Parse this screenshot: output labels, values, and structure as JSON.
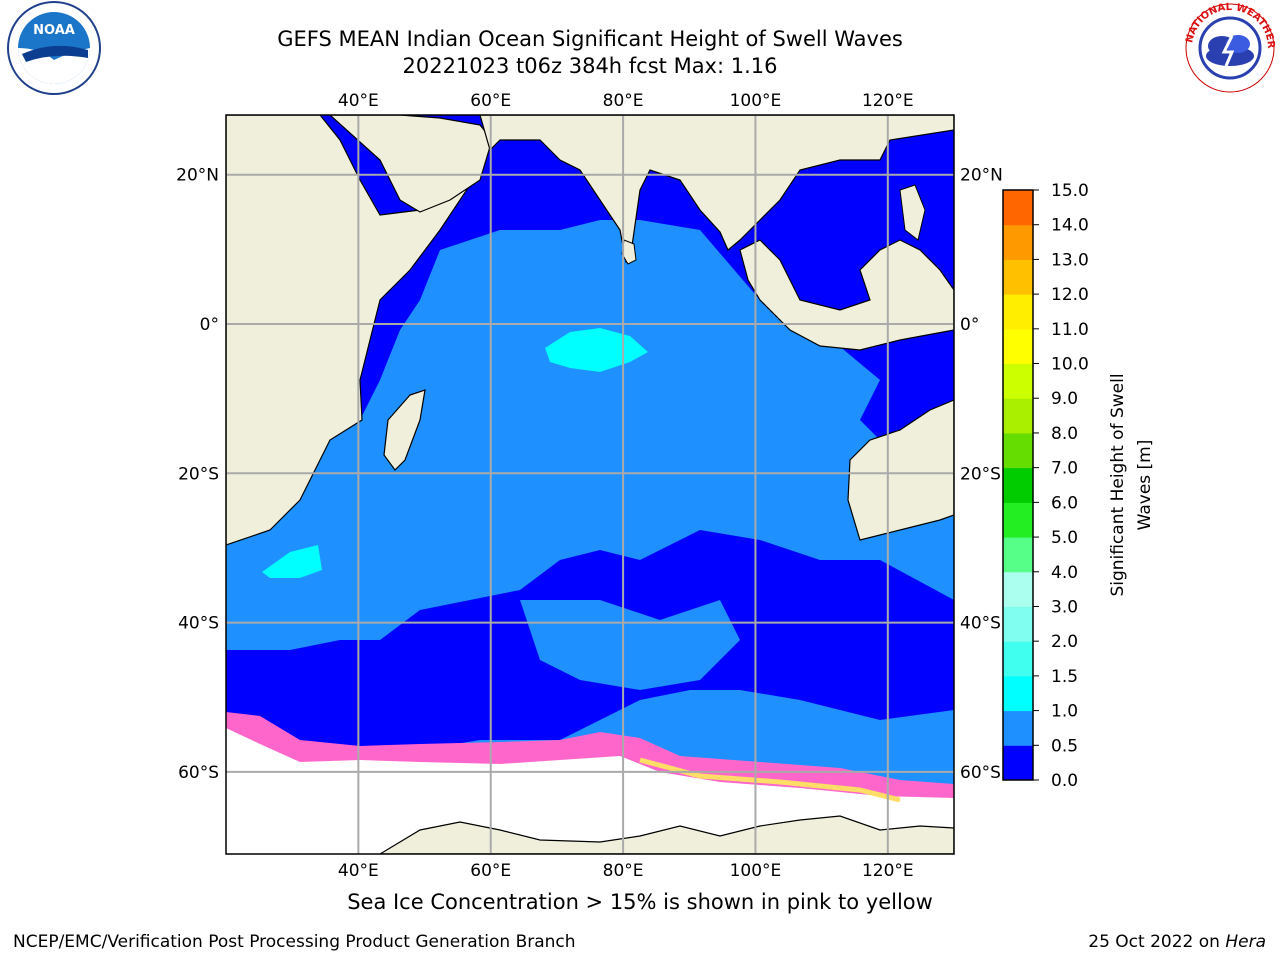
{
  "title_line1": "GEFS MEAN Indian Ocean Significant Height of Swell Waves",
  "title_line2": "20221023 t06z 384h fcst   Max: 1.16",
  "lon_ticks": [
    {
      "lon": 40,
      "label": "40°E"
    },
    {
      "lon": 60,
      "label": "60°E"
    },
    {
      "lon": 80,
      "label": "80°E"
    },
    {
      "lon": 100,
      "label": "100°E"
    },
    {
      "lon": 120,
      "label": "120°E"
    }
  ],
  "lat_ticks": [
    {
      "lat": 20,
      "label": "20°N"
    },
    {
      "lat": 0,
      "label": "0°"
    },
    {
      "lat": -20,
      "label": "20°S"
    },
    {
      "lat": -40,
      "label": "40°S"
    },
    {
      "lat": -60,
      "label": "60°S"
    }
  ],
  "map_extent": {
    "lon_min": 20,
    "lon_max": 130,
    "lat_min": -71,
    "lat_max": 28
  },
  "colorbar": {
    "label_line1": "Significant Height of Swell",
    "label_line2": "Waves [m]",
    "ticks": [
      "0.0",
      "0.5",
      "1.0",
      "1.5",
      "2.0",
      "3.0",
      "4.0",
      "5.0",
      "6.0",
      "7.0",
      "8.0",
      "9.0",
      "10.0",
      "11.0",
      "12.0",
      "13.0",
      "14.0",
      "15.0"
    ],
    "colors": [
      "#0000ff",
      "#1e90ff",
      "#00ffff",
      "#40ffee",
      "#80fff0",
      "#aaffee",
      "#55ff88",
      "#22ee22",
      "#00cc00",
      "#66dd00",
      "#aaee00",
      "#ccff00",
      "#ffff00",
      "#ffee00",
      "#ffc000",
      "#ff9900",
      "#ff6600",
      "#ff3300",
      "#ff0000"
    ]
  },
  "colors": {
    "land": "#efefdc",
    "ocean_low": "#0000ff",
    "ocean_mid": "#1e90ff",
    "swell_cyan": "#00ffff",
    "ice_white": "#ffffff",
    "ice_pink": "#ff66cc",
    "ice_yellow": "#ffdd66"
  },
  "footnote": "Sea Ice Concentration > 15% is shown in pink to yellow",
  "footer_left": "NCEP/EMC/Verification Post Processing Product Generation Branch",
  "footer_date": "25 Oct 2022 on",
  "footer_host": "Hera",
  "logo_left": "NOAA",
  "logo_right": "NATIONAL WEATHER SERVICE"
}
